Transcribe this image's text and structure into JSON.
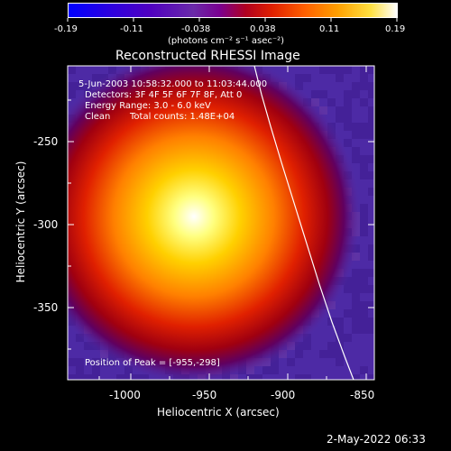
{
  "colorbar": {
    "ticks": [
      "-0.19",
      "-0.11",
      "-0.038",
      "0.038",
      "0.11",
      "0.19"
    ],
    "units": "(photons cm⁻² s⁻¹ asec⁻²)",
    "range": [
      -0.19,
      0.19
    ]
  },
  "title": "Reconstructed RHESSI Image",
  "annotations": {
    "line1": "5-Jun-2003 10:58:32.000 to 11:03:44.000",
    "line2": "Detectors: 3F 4F 5F 6F 7F 8F, Att 0",
    "line3": "Energy Range: 3.0 - 6.0 keV",
    "line4_a": "Clean",
    "line4_b": "Total counts: 1.48E+04",
    "peak": "Position of Peak = [-955,-298]"
  },
  "axes": {
    "xlabel": "Heliocentric X (arcsec)",
    "ylabel": "Heliocentric Y (arcsec)",
    "xticks": [
      "-1000",
      "-950",
      "-900",
      "-850"
    ],
    "yticks": [
      "-250",
      "-300",
      "-350"
    ],
    "xrange": [
      -1035,
      -835
    ],
    "yrange": [
      -397,
      -197
    ]
  },
  "timestamp": "2-May-2022 06:33",
  "peak_position": [
    -955,
    -298
  ],
  "colors": {
    "background": "#000000",
    "limb_line": "#ffffff",
    "colormap": [
      "#0000ff",
      "#3a00d8",
      "#5a00b0",
      "#6a3aa8",
      "#8a0078",
      "#c00000",
      "#ff2000",
      "#ff8000",
      "#ffd000",
      "#ffffff"
    ]
  }
}
